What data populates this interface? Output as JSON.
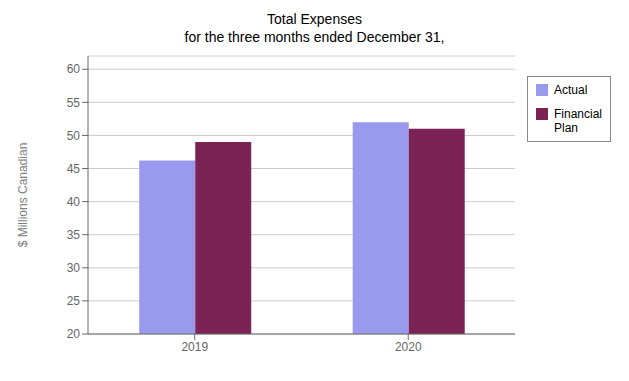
{
  "chart_data": {
    "type": "bar",
    "title": "Total Expenses\nfor the three months ended December 31,",
    "ylabel": "$ Millions Canadian",
    "categories": [
      "2019",
      "2020"
    ],
    "series": [
      {
        "name": "Actual",
        "color": "#9999EE",
        "values": [
          46.2,
          52.0
        ]
      },
      {
        "name": "Financial\nPlan",
        "color": "#7B2355",
        "values": [
          49.0,
          51.0
        ]
      }
    ],
    "ylim": [
      20,
      62
    ],
    "yticks": [
      20,
      25,
      30,
      35,
      40,
      45,
      50,
      55,
      60
    ],
    "grid": true,
    "legend": "right"
  }
}
